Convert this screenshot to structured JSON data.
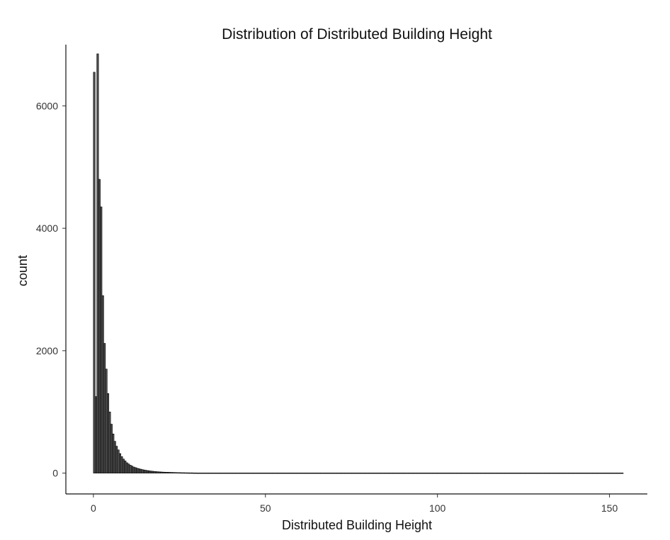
{
  "chart_data": {
    "type": "bar",
    "title": "Distribution of Distributed Building Height",
    "xlabel": "Distributed Building Height",
    "ylabel": "count",
    "xlim": [
      -8,
      161
    ],
    "ylim": [
      -340,
      7000
    ],
    "x_ticks": [
      0,
      50,
      100,
      150
    ],
    "y_ticks": [
      0,
      2000,
      4000,
      6000
    ],
    "grid": false,
    "legend": "none",
    "bin_width": 0.5,
    "bins_start": 0,
    "bins_end": 154,
    "values": [
      6550,
      1250,
      6850,
      4800,
      4350,
      2900,
      2120,
      1700,
      1300,
      1000,
      800,
      640,
      520,
      440,
      380,
      320,
      270,
      230,
      200,
      170,
      150,
      130,
      115,
      100,
      90,
      80,
      72,
      65,
      58,
      52,
      47,
      42,
      38,
      34,
      31,
      28,
      25,
      23,
      21,
      19,
      17,
      16,
      15,
      14,
      13,
      12,
      11,
      10,
      9,
      8,
      8,
      7,
      7,
      6,
      6,
      5,
      5,
      5,
      4,
      4
    ],
    "tail_value": 3,
    "colors": {
      "bar_fill": "#4d4d4d",
      "bar_stroke": "#000000",
      "axis": "#111111"
    }
  }
}
